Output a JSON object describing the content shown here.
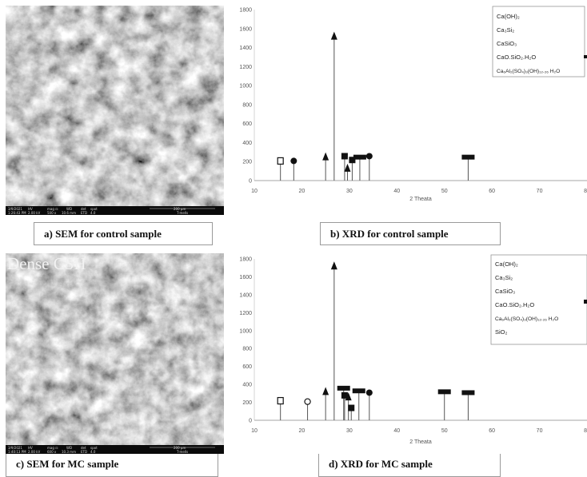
{
  "panels": {
    "a": {
      "caption": "a) SEM for control sample",
      "databar": [
        "3/9/2021",
        "HV",
        "mag ⊡",
        "WD",
        "det",
        "spot",
        "200 µm",
        "1:26:43 PM",
        "2.00 kV",
        "500 x",
        "10.6 mm",
        "ETD",
        "4.0",
        "T-mells"
      ]
    },
    "b": {
      "caption": "b) XRD for control sample"
    },
    "c": {
      "caption": "c) SEM for MC sample",
      "overlay": "Dense CSH",
      "databar": [
        "3/9/2021",
        "HV",
        "mag ⊡",
        "WD",
        "det",
        "spot",
        "200 µm",
        "1:40:13 PM",
        "2.00 kV",
        "600 x",
        "10.3 mm",
        "ETD",
        "4.0",
        "T-mells"
      ]
    },
    "d": {
      "caption": "d) XRD for MC sample"
    }
  },
  "marker_symbols": {
    "Ca(OH)2": "open-square",
    "Ca3Si2": "filled-triangle",
    "CaSiO3": "filled-circle",
    "CaO.SiO2.H2O": "filled-square",
    "Ca6Al2(SO4)3(OH)12.26 H2O": "filled-bar",
    "SiO2": "open-circle"
  },
  "chart_data": [
    {
      "type": "line",
      "xlabel": "2 Theata",
      "xlim": [
        10,
        80
      ],
      "ylim": [
        0,
        1800
      ],
      "x_ticks": [
        10,
        20,
        30,
        40,
        50,
        60,
        70,
        80
      ],
      "y_ticks": [
        0,
        200,
        400,
        600,
        800,
        1000,
        1200,
        1400,
        1600,
        1800
      ],
      "legend": [
        "Ca(OH)₂",
        "Ca₃Si₂",
        "CaSiO₃",
        "CaO.SiO₂.H₂O",
        "Ca₆Al₂(SO₄)₃(OH)₁₂.₂₆ H₂O"
      ],
      "legend_position": "top-right",
      "peaks": [
        {
          "x": 15.5,
          "y": 190,
          "marker": "open-square"
        },
        {
          "x": 18.3,
          "y": 190,
          "marker": "filled-circle"
        },
        {
          "x": 25.0,
          "y": 230,
          "marker": "filled-triangle"
        },
        {
          "x": 26.8,
          "y": 1500,
          "marker": "filled-triangle"
        },
        {
          "x": 29.0,
          "y": 240,
          "marker": "filled-square"
        },
        {
          "x": 29.6,
          "y": 110,
          "marker": "filled-triangle"
        },
        {
          "x": 30.6,
          "y": 200,
          "marker": "filled-square"
        },
        {
          "x": 32.2,
          "y": 230,
          "marker": "filled-bar"
        },
        {
          "x": 34.2,
          "y": 240,
          "marker": "filled-circle"
        },
        {
          "x": 55.0,
          "y": 230,
          "marker": "filled-bar"
        }
      ]
    },
    {
      "type": "line",
      "xlabel": "2 Theata",
      "xlim": [
        10,
        80
      ],
      "ylim": [
        0,
        1800
      ],
      "x_ticks": [
        10,
        20,
        30,
        40,
        50,
        60,
        70,
        80
      ],
      "y_ticks": [
        0,
        200,
        400,
        600,
        800,
        1000,
        1200,
        1400,
        1600,
        1800
      ],
      "legend": [
        "Ca(OH)₂",
        "Ca₃Si₂",
        "CaSiO₃",
        "CaO.SiO₂.H₂O",
        "Ca₆Al₂(SO₄)₃(OH)₁₂.₂₆ H₂O",
        "SiO₂"
      ],
      "legend_position": "top-right",
      "peaks": [
        {
          "x": 15.5,
          "y": 200,
          "marker": "open-square"
        },
        {
          "x": 21.2,
          "y": 190,
          "marker": "open-circle"
        },
        {
          "x": 25.0,
          "y": 300,
          "marker": "filled-triangle"
        },
        {
          "x": 26.8,
          "y": 1700,
          "marker": "filled-triangle"
        },
        {
          "x": 28.8,
          "y": 340,
          "marker": "filled-bar"
        },
        {
          "x": 29.0,
          "y": 260,
          "marker": "filled-square"
        },
        {
          "x": 29.8,
          "y": 240,
          "marker": "filled-triangle"
        },
        {
          "x": 30.4,
          "y": 120,
          "marker": "filled-square"
        },
        {
          "x": 32.0,
          "y": 310,
          "marker": "filled-bar"
        },
        {
          "x": 34.2,
          "y": 290,
          "marker": "filled-circle"
        },
        {
          "x": 50.0,
          "y": 300,
          "marker": "filled-bar"
        },
        {
          "x": 55.0,
          "y": 290,
          "marker": "filled-bar"
        }
      ]
    }
  ]
}
